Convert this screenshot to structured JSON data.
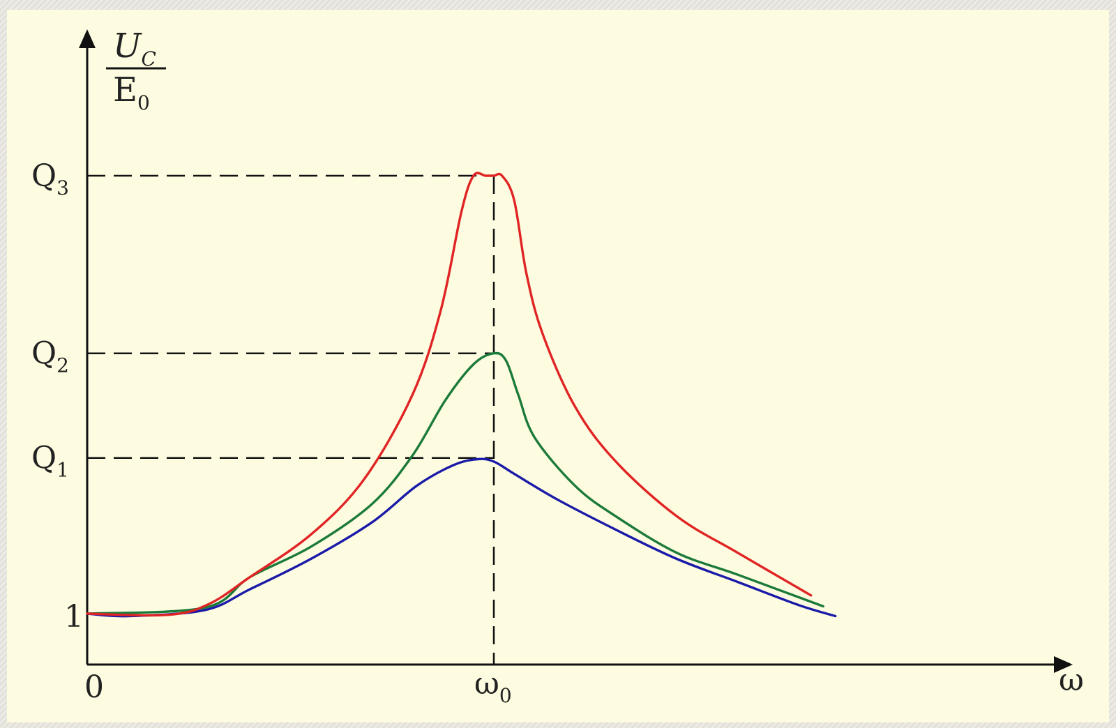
{
  "chart_data": {
    "type": "line",
    "ylabel": {
      "numerator": "U",
      "numerator_sub": "C",
      "denominator": "E",
      "denominator_sub": "0"
    },
    "xlabel": "ω",
    "x_ticks": [
      {
        "label": "0",
        "x": 0
      },
      {
        "label": "ω",
        "sub": "0",
        "x": 1
      }
    ],
    "y_ticks": [
      {
        "label": "1",
        "y": 1
      },
      {
        "label": "Q",
        "sub": "1",
        "y": 2.28
      },
      {
        "label": "Q",
        "sub": "2",
        "y": 3.14
      },
      {
        "label": "Q",
        "sub": "3",
        "y": 4.6
      }
    ],
    "xlim": [
      0,
      2.65
    ],
    "ylim": [
      0.62,
      5.7
    ],
    "series": [
      {
        "key": "q1",
        "color": "#1a1aa8",
        "peak": 2.28,
        "x": [
          0,
          0.1,
          0.29,
          0.4,
          0.55,
          0.7,
          0.81,
          0.9,
          0.96,
          1.0,
          1.05,
          1.15,
          1.3,
          1.45,
          1.6,
          1.75,
          1.84
        ],
        "y": [
          1.0,
          0.98,
          1.03,
          1.2,
          1.45,
          1.75,
          2.05,
          2.22,
          2.27,
          2.25,
          2.15,
          1.95,
          1.69,
          1.45,
          1.26,
          1.07,
          0.98
        ]
      },
      {
        "key": "q2",
        "color": "#1b7a3a",
        "peak": 3.14,
        "x": [
          0,
          0.29,
          0.4,
          0.55,
          0.7,
          0.8,
          0.88,
          0.95,
          1.0,
          1.03,
          1.06,
          1.1,
          1.2,
          1.3,
          1.45,
          1.6,
          1.81
        ],
        "y": [
          1.0,
          1.05,
          1.3,
          1.55,
          1.9,
          2.3,
          2.75,
          3.05,
          3.14,
          3.08,
          2.8,
          2.45,
          2.05,
          1.8,
          1.5,
          1.32,
          1.06
        ]
      },
      {
        "key": "q3",
        "color": "#e02424",
        "peak": 4.6,
        "x": [
          0,
          0.2,
          0.3,
          0.4,
          0.55,
          0.68,
          0.8,
          0.87,
          0.92,
          0.95,
          0.98,
          1.0,
          1.02,
          1.05,
          1.08,
          1.12,
          1.2,
          1.3,
          1.45,
          1.6,
          1.78
        ],
        "y": [
          1.0,
          0.99,
          1.08,
          1.3,
          1.65,
          2.1,
          2.8,
          3.5,
          4.3,
          4.6,
          4.6,
          4.6,
          4.6,
          4.4,
          3.8,
          3.3,
          2.7,
          2.25,
          1.8,
          1.5,
          1.15
        ]
      }
    ]
  }
}
